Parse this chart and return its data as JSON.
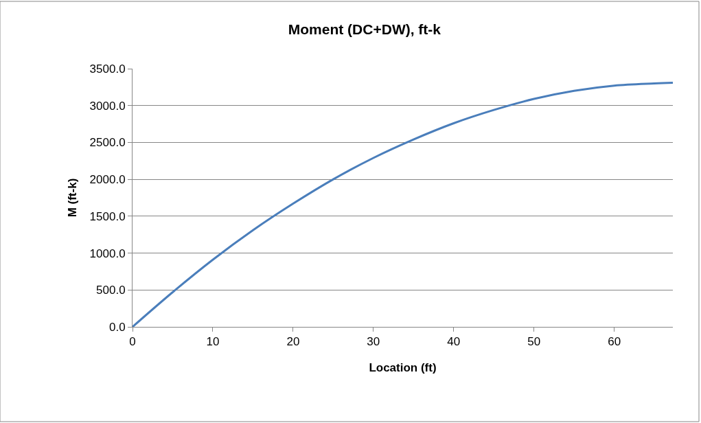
{
  "chart_data": {
    "type": "line",
    "title": "Moment (DC+DW), ft-k",
    "xlabel": "Location (ft)",
    "ylabel": "M (ft-k)",
    "x": [
      0,
      5,
      10,
      15,
      20,
      25,
      30,
      35,
      40,
      45,
      50,
      55,
      60,
      65,
      67.3
    ],
    "series": [
      {
        "color": "#4a7ebb",
        "values": [
          0,
          470,
          910,
          1310,
          1670,
          2000,
          2290,
          2540,
          2760,
          2940,
          3090,
          3200,
          3270,
          3300,
          3310
        ]
      }
    ],
    "xlim": [
      0,
      67.3
    ],
    "xticks": [
      0,
      10,
      20,
      30,
      40,
      50,
      60
    ],
    "ylim": [
      0,
      3500
    ],
    "yticks": [
      {
        "value": 0,
        "label": "0.0"
      },
      {
        "value": 500,
        "label": "500.0"
      },
      {
        "value": 1000,
        "label": "1000.0"
      },
      {
        "value": 1500,
        "label": "1500.0"
      },
      {
        "value": 2000,
        "label": "2000.0"
      },
      {
        "value": 2500,
        "label": "2500.0"
      },
      {
        "value": 3000,
        "label": "3000.0"
      },
      {
        "value": 3500,
        "label": "3500.0"
      }
    ],
    "grid": "y",
    "legend": false,
    "marker": "none",
    "line_style": "solid"
  }
}
